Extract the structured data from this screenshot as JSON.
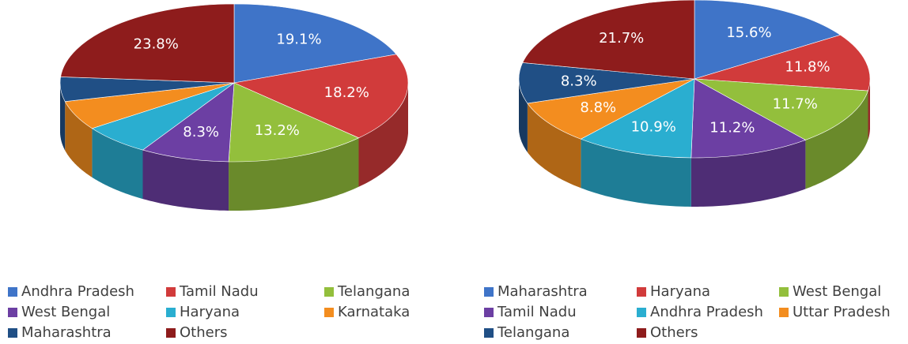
{
  "chart_data": [
    {
      "type": "pie",
      "categories": [
        "Andhra Pradesh",
        "Tamil Nadu",
        "Telangana",
        "West Bengal",
        "Haryana",
        "Karnataka",
        "Maharashtra",
        "Others"
      ],
      "values": [
        19.1,
        18.2,
        13.2,
        8.3,
        6.4,
        6.0,
        5.0,
        23.8
      ],
      "value_labels": [
        "19.1%",
        "18.2%",
        "13.2%",
        "8.3%",
        null,
        null,
        null,
        "23.8%"
      ],
      "colors": [
        "#3f74c8",
        "#d13b3b",
        "#93bf3c",
        "#6c3fa3",
        "#2aaed0",
        "#f38d1f",
        "#204f85",
        "#8e1c1c"
      ]
    },
    {
      "type": "pie",
      "categories": [
        "Maharashtra",
        "Haryana",
        "West Bengal",
        "Tamil Nadu",
        "Andhra Pradesh",
        "Uttar Pradesh",
        "Telangana",
        "Others"
      ],
      "values": [
        15.6,
        11.8,
        11.7,
        11.2,
        10.9,
        8.8,
        8.3,
        21.7
      ],
      "value_labels": [
        "15.6%",
        "11.8%",
        "11.7%",
        "11.2%",
        "10.9%",
        "8.8%",
        "8.3%",
        "21.7%"
      ],
      "colors": [
        "#3f74c8",
        "#d13b3b",
        "#93bf3c",
        "#6c3fa3",
        "#2aaed0",
        "#f38d1f",
        "#204f85",
        "#8e1c1c"
      ]
    }
  ]
}
